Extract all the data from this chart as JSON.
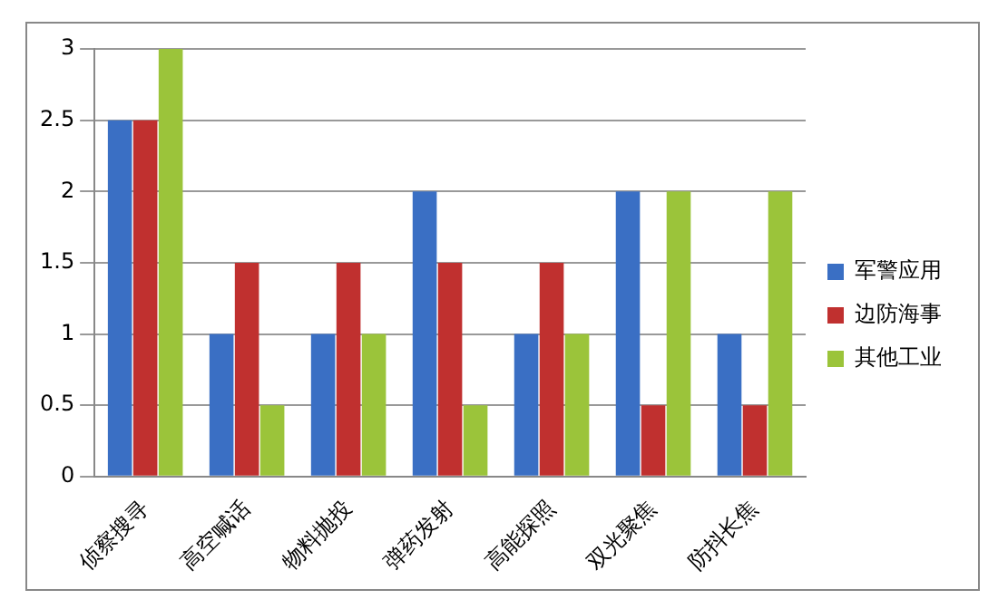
{
  "chart_data": {
    "type": "bar",
    "categories": [
      "侦察搜寻",
      "高空喊话",
      "物料抛投",
      "弹药发射",
      "高能探照",
      "双光聚焦",
      "防抖长焦"
    ],
    "series": [
      {
        "name": "军警应用",
        "color": "#3a6fc4",
        "values": [
          2.5,
          1,
          1,
          2,
          1,
          2,
          1
        ]
      },
      {
        "name": "边防海事",
        "color": "#c0302f",
        "values": [
          2.5,
          1.5,
          1.5,
          1.5,
          1.5,
          0.5,
          0.5
        ]
      },
      {
        "name": "其他工业",
        "color": "#9bc43a",
        "values": [
          3,
          0.5,
          1,
          0.5,
          1,
          2,
          2
        ]
      }
    ],
    "ylim": [
      0,
      3
    ],
    "yticks": [
      0,
      0.5,
      1,
      1.5,
      2,
      2.5,
      3
    ],
    "grid": "y",
    "legend": "right"
  }
}
